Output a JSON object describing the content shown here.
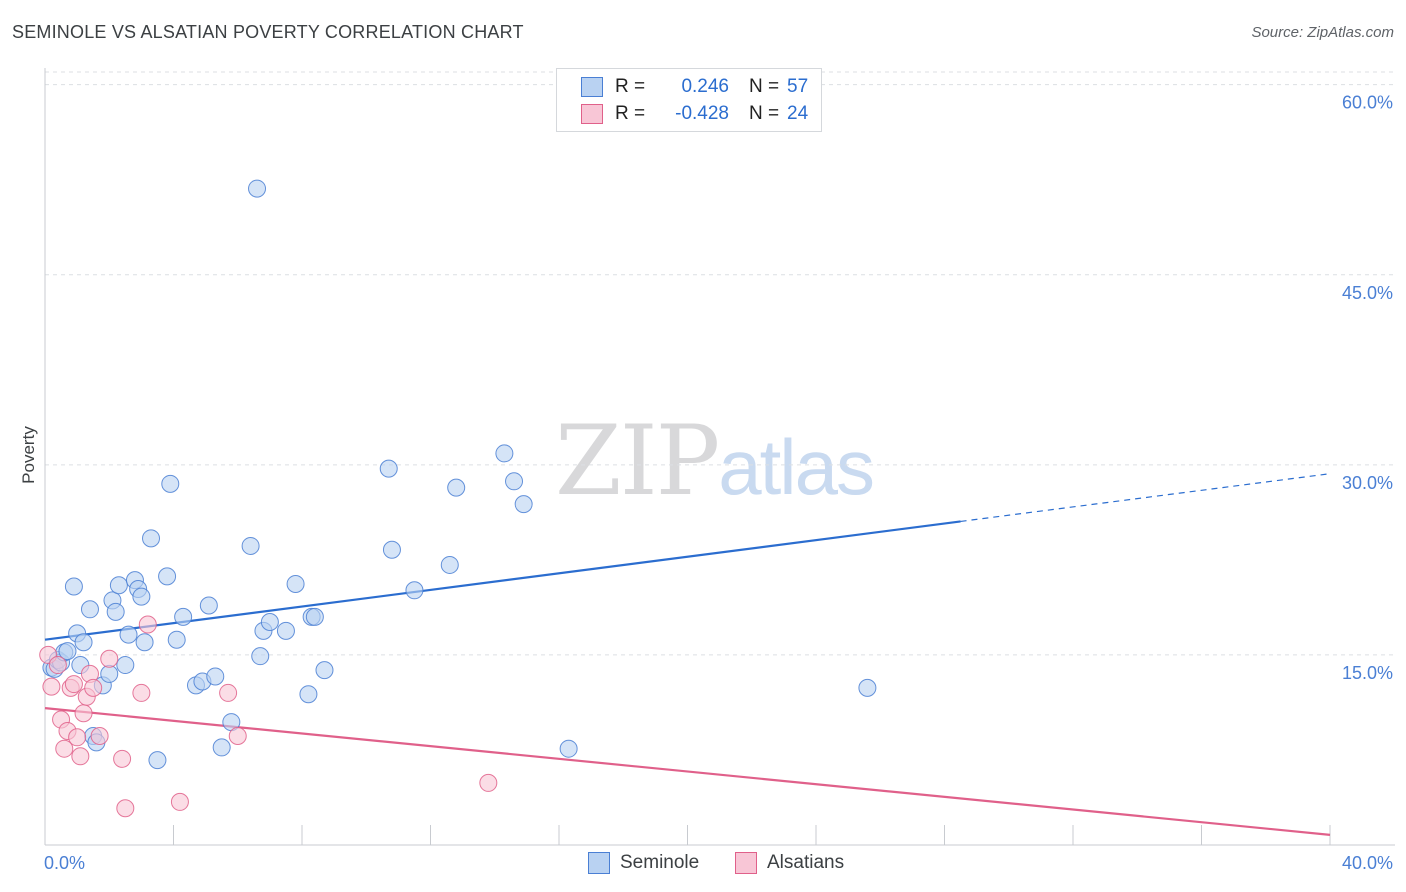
{
  "header": {
    "title": "SEMINOLE VS ALSATIAN POVERTY CORRELATION CHART",
    "source": "Source: ZipAtlas.com"
  },
  "legend": {
    "r_label": "R =",
    "n_label": "N =",
    "rows": [
      {
        "r": "0.246",
        "n": "57"
      },
      {
        "r": "-0.428",
        "n": "24"
      }
    ]
  },
  "watermark": {
    "zip": "ZIP",
    "atlas": "atlas"
  },
  "chart_data": {
    "type": "scatter",
    "title": "SEMINOLE VS ALSATIAN POVERTY CORRELATION CHART",
    "xlabel": "",
    "ylabel": "Poverty",
    "xlim": [
      0,
      40
    ],
    "ylim": [
      0,
      61
    ],
    "grid": true,
    "legend_position": "bottom",
    "x_tick_labels": [
      "0.0%",
      "40.0%"
    ],
    "y_ticks": [
      15,
      30,
      45,
      60
    ],
    "y_tick_labels": [
      "15.0%",
      "30.0%",
      "45.0%",
      "60.0%"
    ],
    "colors": {
      "seminole": "#4a7fd4",
      "seminole_fill": "#b9d2f2",
      "alsatians": "#e0608a",
      "alsatians_fill": "#f8c6d6"
    },
    "series": [
      {
        "name": "Seminole",
        "x": [
          0.2,
          0.3,
          0.4,
          0.5,
          0.6,
          0.7,
          0.9,
          1.0,
          1.1,
          1.2,
          1.4,
          1.5,
          1.6,
          1.8,
          2.0,
          2.1,
          2.2,
          2.3,
          2.5,
          2.6,
          2.8,
          2.9,
          3.0,
          3.1,
          3.3,
          3.5,
          3.8,
          3.9,
          4.1,
          4.3,
          4.7,
          4.9,
          5.1,
          5.3,
          5.5,
          5.8,
          6.4,
          6.6,
          6.7,
          6.8,
          7.0,
          7.5,
          7.8,
          8.2,
          8.3,
          8.4,
          8.7,
          10.7,
          10.8,
          11.5,
          12.6,
          12.8,
          14.3,
          14.6,
          14.9,
          16.3,
          25.6
        ],
        "y": [
          14.0,
          13.9,
          14.6,
          14.4,
          15.2,
          15.3,
          20.4,
          16.7,
          14.2,
          16.0,
          18.6,
          8.6,
          8.1,
          12.6,
          13.5,
          19.3,
          18.4,
          20.5,
          14.2,
          16.6,
          20.9,
          20.2,
          19.6,
          16.0,
          24.2,
          6.7,
          21.2,
          28.5,
          16.2,
          18.0,
          12.6,
          12.9,
          18.9,
          13.3,
          7.7,
          9.7,
          23.6,
          51.8,
          14.9,
          16.9,
          17.6,
          16.9,
          20.6,
          11.9,
          18.0,
          18.0,
          13.8,
          29.7,
          23.3,
          20.1,
          22.1,
          28.2,
          30.9,
          28.7,
          26.9,
          7.6,
          12.4
        ]
      },
      {
        "name": "Alsatians",
        "x": [
          0.1,
          0.2,
          0.4,
          0.5,
          0.6,
          0.7,
          0.8,
          0.9,
          1.0,
          1.1,
          1.2,
          1.3,
          1.4,
          1.5,
          1.7,
          2.0,
          2.4,
          2.5,
          3.0,
          3.2,
          4.2,
          5.7,
          6.0,
          13.8
        ],
        "y": [
          15.0,
          12.5,
          14.2,
          9.9,
          7.6,
          9.0,
          12.4,
          12.7,
          8.5,
          7.0,
          10.4,
          11.7,
          13.5,
          12.4,
          8.6,
          14.7,
          6.8,
          2.9,
          12.0,
          17.4,
          3.4,
          12.0,
          8.6,
          4.9
        ]
      }
    ],
    "trendlines": [
      {
        "series": "Seminole",
        "x": [
          0,
          40
        ],
        "y": [
          16.2,
          29.3
        ],
        "solid_until_x": 28.5
      },
      {
        "series": "Alsatians",
        "x": [
          0,
          40
        ],
        "y": [
          10.8,
          0.8
        ]
      }
    ]
  }
}
